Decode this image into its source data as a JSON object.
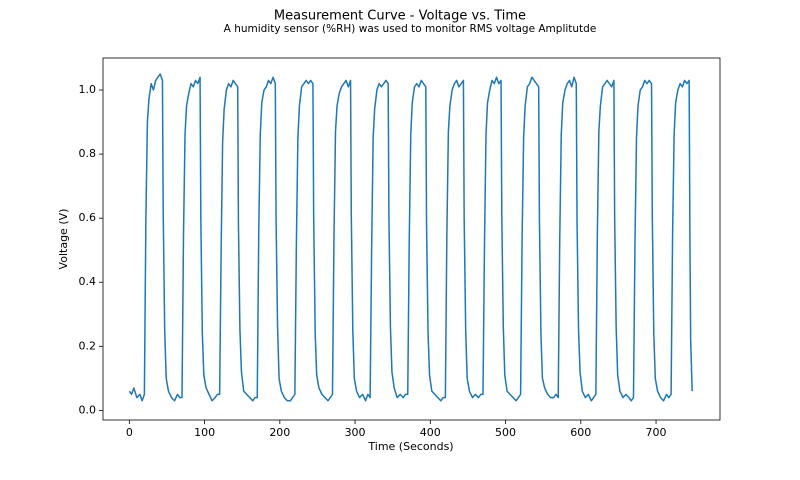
{
  "chart_data": {
    "type": "line",
    "title": "Measurement Curve - Voltage vs. Time",
    "subtitle": "A humidity sensor (%RH) was used to monitor RMS voltage Amplitutde",
    "x_label": "Time (Seconds)",
    "y_label": "Voltage (V)",
    "color": "#1f77b4",
    "grid": false,
    "xlim": [
      -35,
      785
    ],
    "ylim": [
      -0.03,
      1.1
    ],
    "xticks": [
      0,
      100,
      200,
      300,
      400,
      500,
      600,
      700
    ],
    "yticks": [
      {
        "value": 0,
        "label": "0.0"
      },
      0.2,
      0.4,
      0.6,
      0.8,
      {
        "value": 1,
        "label": "1.0"
      }
    ],
    "x": [
      0,
      3,
      6,
      10,
      14,
      17,
      20,
      22,
      24,
      26,
      29,
      32,
      35,
      38,
      41,
      44,
      45,
      47,
      49,
      52,
      56,
      60,
      64,
      67,
      70,
      72,
      74,
      76,
      79,
      82,
      85,
      88,
      91,
      94,
      95,
      97,
      99,
      102,
      106,
      110,
      114,
      117,
      120,
      122,
      124,
      126,
      129,
      132,
      135,
      138,
      141,
      144,
      145,
      147,
      149,
      152,
      156,
      160,
      164,
      167,
      170,
      172,
      174,
      176,
      179,
      182,
      185,
      188,
      191,
      194,
      195,
      197,
      199,
      202,
      206,
      210,
      214,
      217,
      220,
      222,
      224,
      226,
      229,
      232,
      235,
      238,
      241,
      244,
      245,
      247,
      249,
      252,
      256,
      260,
      264,
      267,
      270,
      272,
      274,
      276,
      279,
      282,
      285,
      288,
      291,
      294,
      295,
      297,
      299,
      302,
      306,
      310,
      314,
      317,
      320,
      322,
      324,
      326,
      329,
      332,
      335,
      338,
      341,
      344,
      345,
      347,
      349,
      352,
      356,
      360,
      364,
      367,
      370,
      372,
      374,
      376,
      379,
      382,
      385,
      388,
      391,
      394,
      395,
      397,
      399,
      402,
      406,
      410,
      414,
      417,
      420,
      422,
      424,
      426,
      429,
      432,
      435,
      438,
      441,
      444,
      445,
      447,
      449,
      452,
      456,
      460,
      464,
      467,
      470,
      472,
      474,
      476,
      479,
      482,
      485,
      488,
      491,
      494,
      495,
      497,
      499,
      502,
      506,
      510,
      514,
      517,
      520,
      522,
      524,
      526,
      529,
      532,
      535,
      538,
      541,
      544,
      545,
      547,
      549,
      552,
      556,
      560,
      564,
      567,
      570,
      572,
      574,
      576,
      579,
      582,
      585,
      588,
      591,
      594,
      595,
      597,
      599,
      602,
      606,
      610,
      614,
      617,
      620,
      622,
      624,
      626,
      629,
      632,
      635,
      638,
      641,
      644,
      645,
      647,
      649,
      652,
      656,
      660,
      664,
      667,
      670,
      672,
      674,
      676,
      679,
      682,
      685,
      688,
      691,
      694,
      695,
      697,
      699,
      702,
      706,
      710,
      714,
      717,
      720,
      722,
      724,
      726,
      729,
      732,
      735,
      738,
      741,
      744,
      745,
      746,
      748
    ],
    "values": [
      0.06,
      0.05,
      0.07,
      0.04,
      0.05,
      0.03,
      0.05,
      0.6,
      0.9,
      0.97,
      1.02,
      1.0,
      1.03,
      1.04,
      1.05,
      1.03,
      0.62,
      0.25,
      0.1,
      0.06,
      0.04,
      0.03,
      0.05,
      0.04,
      0.04,
      0.55,
      0.86,
      0.95,
      0.99,
      1.02,
      1.01,
      1.03,
      1.02,
      1.04,
      0.6,
      0.24,
      0.11,
      0.07,
      0.05,
      0.03,
      0.04,
      0.05,
      0.05,
      0.5,
      0.84,
      0.94,
      1.0,
      1.02,
      1.01,
      1.03,
      1.02,
      1.01,
      0.58,
      0.25,
      0.12,
      0.06,
      0.05,
      0.04,
      0.03,
      0.04,
      0.04,
      0.56,
      0.86,
      0.96,
      1.0,
      1.01,
      1.03,
      1.02,
      1.04,
      1.02,
      0.6,
      0.26,
      0.1,
      0.06,
      0.04,
      0.03,
      0.03,
      0.04,
      0.05,
      0.52,
      0.85,
      0.95,
      1.01,
      1.02,
      1.03,
      1.02,
      1.03,
      1.02,
      0.6,
      0.24,
      0.11,
      0.07,
      0.05,
      0.04,
      0.03,
      0.04,
      0.05,
      0.55,
      0.87,
      0.95,
      0.99,
      1.01,
      1.02,
      1.03,
      1.01,
      1.03,
      0.61,
      0.25,
      0.1,
      0.06,
      0.04,
      0.05,
      0.03,
      0.05,
      0.04,
      0.5,
      0.85,
      0.94,
      1.0,
      1.02,
      1.01,
      1.02,
      1.03,
      1.02,
      0.6,
      0.26,
      0.12,
      0.07,
      0.04,
      0.05,
      0.04,
      0.05,
      0.05,
      0.53,
      0.86,
      0.96,
      1.01,
      1.02,
      1.01,
      1.03,
      1.02,
      1.01,
      0.58,
      0.24,
      0.11,
      0.06,
      0.05,
      0.04,
      0.03,
      0.04,
      0.04,
      0.55,
      0.87,
      0.95,
      1.0,
      1.02,
      1.03,
      1.01,
      1.02,
      1.03,
      0.6,
      0.25,
      0.1,
      0.06,
      0.04,
      0.05,
      0.04,
      0.05,
      0.05,
      0.52,
      0.86,
      0.96,
      1.0,
      1.03,
      1.02,
      1.04,
      1.02,
      1.03,
      0.61,
      0.26,
      0.11,
      0.06,
      0.05,
      0.04,
      0.03,
      0.04,
      0.05,
      0.54,
      0.85,
      0.95,
      1.01,
      1.02,
      1.04,
      1.03,
      1.02,
      1.01,
      0.6,
      0.24,
      0.1,
      0.07,
      0.05,
      0.04,
      0.04,
      0.05,
      0.04,
      0.53,
      0.86,
      0.96,
      1.0,
      1.02,
      1.03,
      1.01,
      1.04,
      1.02,
      0.59,
      0.25,
      0.12,
      0.06,
      0.04,
      0.05,
      0.03,
      0.04,
      0.05,
      0.55,
      0.87,
      0.95,
      1.01,
      1.02,
      1.03,
      1.02,
      1.01,
      1.03,
      0.6,
      0.26,
      0.11,
      0.06,
      0.04,
      0.05,
      0.04,
      0.03,
      0.04,
      0.52,
      0.85,
      0.95,
      1.0,
      1.01,
      1.03,
      1.02,
      1.03,
      1.02,
      0.61,
      0.24,
      0.1,
      0.06,
      0.04,
      0.03,
      0.05,
      0.04,
      0.05,
      0.55,
      0.86,
      0.96,
      1.0,
      1.02,
      1.01,
      1.03,
      1.02,
      1.03,
      0.55,
      0.22,
      0.06
    ]
  }
}
